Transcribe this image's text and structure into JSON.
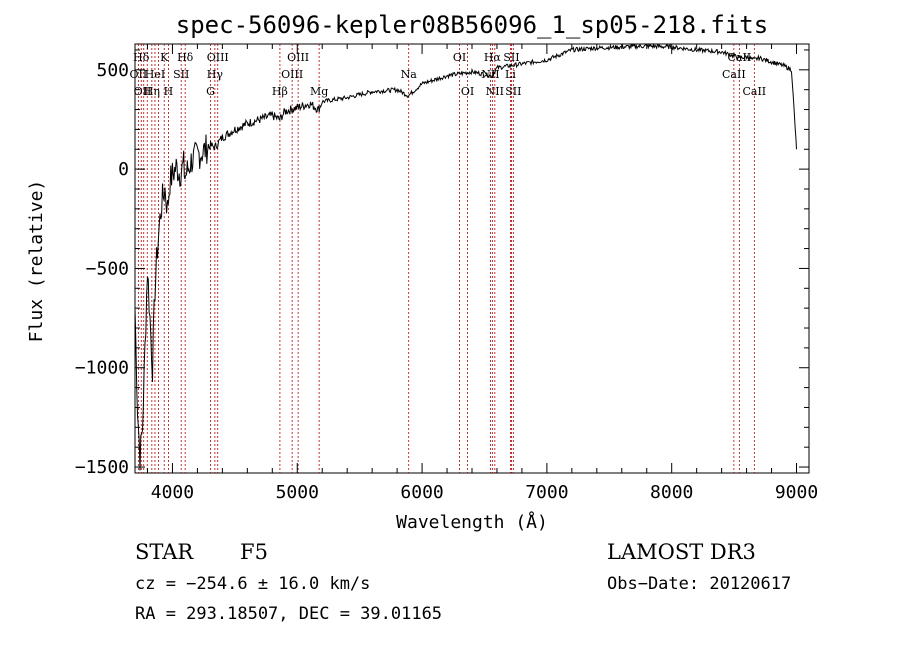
{
  "chart_data": {
    "type": "line",
    "title": "spec-56096-kepler08B56096_1_sp05-218.fits",
    "xlabel": "Wavelength (Å)",
    "ylabel": "Flux (relative)",
    "xlim": [
      3700,
      9100
    ],
    "ylim": [
      -1530,
      630
    ],
    "xticks": [
      4000,
      5000,
      6000,
      7000,
      8000,
      9000
    ],
    "xtick_labels": [
      "4000",
      "5000",
      "6000",
      "7000",
      "8000",
      "9000"
    ],
    "yticks": [
      500,
      0,
      -500,
      -1000,
      -1500
    ],
    "ytick_labels": [
      "500",
      "0",
      "−500",
      "−1000",
      "−1500"
    ],
    "series": [
      {
        "name": "spectrum",
        "points": [
          [
            3700,
            -700
          ],
          [
            3720,
            -1200
          ],
          [
            3740,
            -1450
          ],
          [
            3760,
            -1300
          ],
          [
            3780,
            -900
          ],
          [
            3800,
            -500
          ],
          [
            3820,
            -750
          ],
          [
            3840,
            -1000
          ],
          [
            3860,
            -600
          ],
          [
            3880,
            -400
          ],
          [
            3900,
            -250
          ],
          [
            3920,
            -150
          ],
          [
            3940,
            -100
          ],
          [
            3960,
            -200
          ],
          [
            3980,
            -60
          ],
          [
            4000,
            -30
          ],
          [
            4030,
            10
          ],
          [
            4060,
            -20
          ],
          [
            4090,
            20
          ],
          [
            4100,
            -40
          ],
          [
            4150,
            40
          ],
          [
            4200,
            70
          ],
          [
            4250,
            90
          ],
          [
            4300,
            120
          ],
          [
            4340,
            110
          ],
          [
            4400,
            160
          ],
          [
            4500,
            200
          ],
          [
            4600,
            230
          ],
          [
            4700,
            250
          ],
          [
            4800,
            270
          ],
          [
            4860,
            250
          ],
          [
            4900,
            290
          ],
          [
            5000,
            310
          ],
          [
            5100,
            330
          ],
          [
            5170,
            300
          ],
          [
            5200,
            340
          ],
          [
            5400,
            360
          ],
          [
            5600,
            390
          ],
          [
            5800,
            400
          ],
          [
            5890,
            370
          ],
          [
            6000,
            430
          ],
          [
            6200,
            470
          ],
          [
            6400,
            490
          ],
          [
            6560,
            470
          ],
          [
            6600,
            510
          ],
          [
            6800,
            530
          ],
          [
            7000,
            550
          ],
          [
            7200,
            600
          ],
          [
            7400,
            610
          ],
          [
            7600,
            615
          ],
          [
            7800,
            620
          ],
          [
            8000,
            615
          ],
          [
            8200,
            600
          ],
          [
            8400,
            590
          ],
          [
            8500,
            570
          ],
          [
            8540,
            560
          ],
          [
            8600,
            565
          ],
          [
            8660,
            550
          ],
          [
            8700,
            560
          ],
          [
            8800,
            540
          ],
          [
            8900,
            520
          ],
          [
            8960,
            500
          ],
          [
            8990,
            200
          ],
          [
            9000,
            100
          ]
        ]
      }
    ],
    "annotations": [
      {
        "label": "Hδ",
        "x": 3750,
        "row": 1
      },
      {
        "label": "OII",
        "x": 3727,
        "row": 2
      },
      {
        "label": "OII",
        "x": 3760,
        "row": 3
      },
      {
        "label": "K",
        "x": 3934,
        "row": 1
      },
      {
        "label": "HeI",
        "x": 3860,
        "row": 2
      },
      {
        "label": "Hη",
        "x": 3835,
        "row": 3
      },
      {
        "label": "Hδ",
        "x": 4102,
        "row": 1
      },
      {
        "label": "SII",
        "x": 4070,
        "row": 2
      },
      {
        "label": "H",
        "x": 3968,
        "row": 3
      },
      {
        "label": "OIII",
        "x": 4363,
        "row": 1
      },
      {
        "label": "Hγ",
        "x": 4340,
        "row": 2
      },
      {
        "label": "G",
        "x": 4305,
        "row": 3
      },
      {
        "label": "OIII",
        "x": 5007,
        "row": 1
      },
      {
        "label": "OIII",
        "x": 4959,
        "row": 2
      },
      {
        "label": "Hβ",
        "x": 4861,
        "row": 3
      },
      {
        "label": "Mg",
        "x": 5175,
        "row": 3
      },
      {
        "label": "Na",
        "x": 5893,
        "row": 2
      },
      {
        "label": "OI",
        "x": 6300,
        "row": 1
      },
      {
        "label": "OI",
        "x": 6364,
        "row": 3
      },
      {
        "label": "Hα",
        "x": 6563,
        "row": 1
      },
      {
        "label": "NII",
        "x": 6548,
        "row": 2
      },
      {
        "label": "NII",
        "x": 6583,
        "row": 3
      },
      {
        "label": "SII",
        "x": 6716,
        "row": 1
      },
      {
        "label": "Li",
        "x": 6708,
        "row": 2
      },
      {
        "label": "SII",
        "x": 6731,
        "row": 3
      },
      {
        "label": "CaII",
        "x": 8542,
        "row": 1
      },
      {
        "label": "CaII",
        "x": 8498,
        "row": 2
      },
      {
        "label": "CaII",
        "x": 8662,
        "row": 3
      }
    ],
    "line_marks": [
      3727,
      3750,
      3770,
      3798,
      3835,
      3860,
      3889,
      3934,
      3968,
      4070,
      4102,
      4305,
      4340,
      4363,
      4861,
      4959,
      5007,
      5175,
      5893,
      6300,
      6364,
      6548,
      6563,
      6583,
      6708,
      6716,
      6731,
      8498,
      8542,
      8662
    ],
    "grid": false,
    "legend": "none"
  },
  "info": {
    "object_class": "STAR",
    "subclass": "F5",
    "survey": "LAMOST DR3",
    "cz": "cz = −254.6 ± 16.0 km/s",
    "obs_date": "Obs−Date: 20120617",
    "coords": "RA = 293.18507, DEC =  39.01165"
  },
  "colors": {
    "spectrum": "#000000",
    "line_marks": "#b00000",
    "axes": "#000000"
  }
}
